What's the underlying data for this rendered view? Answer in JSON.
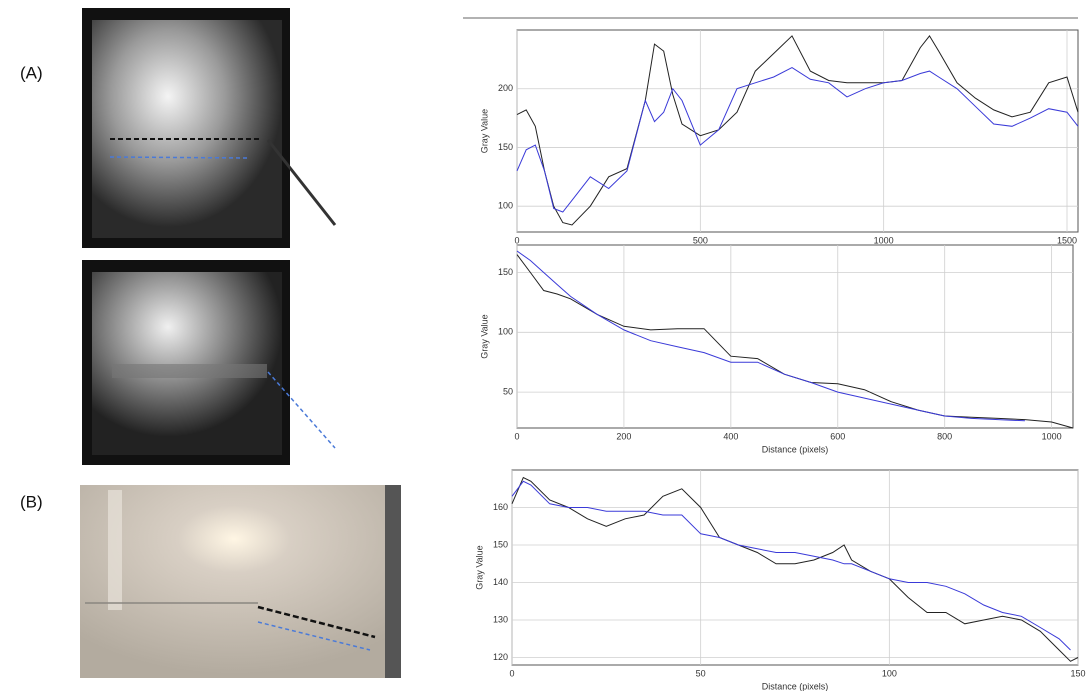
{
  "panel_labels": [
    "(A)",
    "(B)"
  ],
  "chart_data": [
    {
      "type": "line",
      "ylabel": "Gray Value",
      "grid": true,
      "xlim": [
        0,
        1530
      ],
      "xticks": [
        0,
        500,
        1000,
        1500
      ],
      "ylim": [
        78,
        250
      ],
      "yticks": [
        100,
        150,
        200
      ],
      "x": [
        0,
        25,
        50,
        75,
        100,
        125,
        150,
        200,
        250,
        300,
        350,
        375,
        400,
        425,
        450,
        500,
        550,
        600,
        650,
        700,
        750,
        800,
        850,
        900,
        950,
        1000,
        1050,
        1100,
        1125,
        1150,
        1200,
        1250,
        1300,
        1350,
        1400,
        1450,
        1500,
        1530
      ],
      "series": [
        {
          "color": "#222222",
          "values": [
            178,
            182,
            168,
            130,
            100,
            86,
            84,
            100,
            125,
            132,
            190,
            238,
            232,
            195,
            170,
            160,
            165,
            180,
            215,
            230,
            245,
            215,
            207,
            205,
            205,
            205,
            207,
            235,
            245,
            232,
            205,
            192,
            182,
            176,
            180,
            205,
            210,
            180
          ]
        },
        {
          "color": "#3a3ad8",
          "values": [
            130,
            148,
            152,
            130,
            98,
            95,
            105,
            125,
            115,
            130,
            190,
            172,
            180,
            200,
            190,
            152,
            165,
            200,
            205,
            210,
            218,
            208,
            205,
            193,
            200,
            205,
            207,
            213,
            215,
            210,
            200,
            185,
            170,
            168,
            175,
            183,
            180,
            168
          ]
        }
      ]
    },
    {
      "type": "line",
      "xlabel": "Distance (pixels)",
      "ylabel": "Gray Value",
      "grid": true,
      "xlim": [
        0,
        1040
      ],
      "xticks": [
        0,
        200,
        400,
        600,
        800,
        1000
      ],
      "ylim": [
        20,
        173
      ],
      "yticks": [
        50,
        100,
        150
      ],
      "x": [
        0,
        25,
        50,
        75,
        100,
        150,
        200,
        250,
        300,
        350,
        400,
        450,
        500,
        550,
        600,
        650,
        700,
        750,
        800,
        850,
        900,
        950,
        1000,
        1040
      ],
      "series": [
        {
          "color": "#222222",
          "values": [
            165,
            150,
            135,
            132,
            128,
            115,
            105,
            102,
            103,
            103,
            80,
            78,
            65,
            58,
            57,
            52,
            42,
            35,
            30,
            29,
            28,
            27,
            25,
            20
          ]
        },
        {
          "color": "#3a3ad8",
          "values": [
            168,
            160,
            150,
            140,
            130,
            115,
            102,
            93,
            88,
            83,
            75,
            75,
            65,
            58,
            50,
            45,
            40,
            35,
            30,
            28,
            27,
            26,
            null,
            null
          ]
        }
      ]
    },
    {
      "type": "line",
      "xlabel": "Distance (pixels)",
      "ylabel": "Gray Value",
      "grid": true,
      "xlim": [
        0,
        150
      ],
      "xticks": [
        0,
        50,
        100,
        150
      ],
      "ylim": [
        118,
        170
      ],
      "yticks": [
        120,
        130,
        140,
        150,
        160
      ],
      "x": [
        0,
        3,
        5,
        10,
        15,
        20,
        25,
        30,
        35,
        40,
        45,
        50,
        55,
        60,
        65,
        70,
        75,
        80,
        85,
        88,
        90,
        95,
        100,
        105,
        110,
        115,
        120,
        125,
        130,
        135,
        140,
        145,
        148,
        150
      ],
      "series": [
        {
          "color": "#222222",
          "values": [
            161,
            168,
            167,
            162,
            160,
            157,
            155,
            157,
            158,
            163,
            165,
            160,
            152,
            150,
            148,
            145,
            145,
            146,
            148,
            150,
            146,
            143,
            141,
            136,
            132,
            132,
            129,
            130,
            131,
            130,
            127,
            122,
            119,
            120
          ]
        },
        {
          "color": "#3a3ad8",
          "values": [
            163,
            167,
            166,
            161,
            160,
            160,
            159,
            159,
            159,
            158,
            158,
            153,
            152,
            150,
            149,
            148,
            148,
            147,
            146,
            145,
            145,
            143,
            141,
            140,
            140,
            139,
            137,
            134,
            132,
            131,
            128,
            125,
            122,
            null
          ]
        }
      ]
    }
  ]
}
